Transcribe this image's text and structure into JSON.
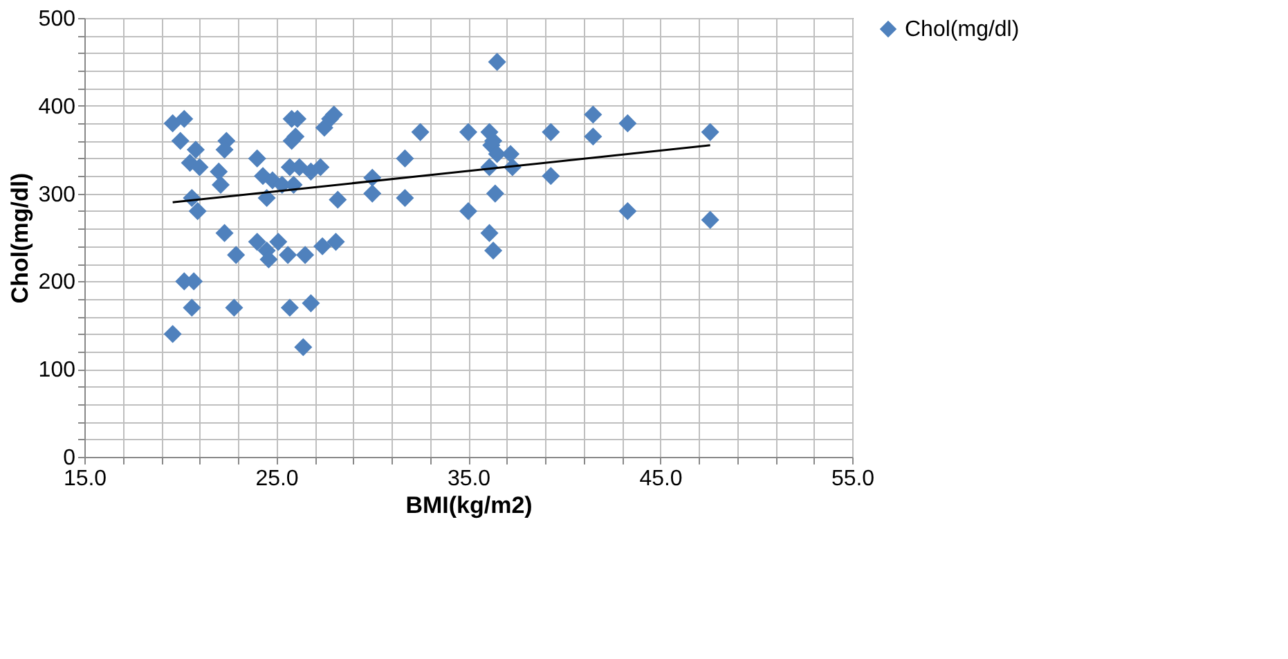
{
  "chart_data": {
    "type": "scatter",
    "xlabel": "BMI(kg/m2)",
    "ylabel": "Chol(mg/dl)",
    "xlim": [
      15,
      55
    ],
    "ylim": [
      0,
      500
    ],
    "xticks": [
      {
        "value": 15,
        "label": "15.0"
      },
      {
        "value": 17,
        "label": null
      },
      {
        "value": 19,
        "label": null
      },
      {
        "value": 21,
        "label": null
      },
      {
        "value": 23,
        "label": null
      },
      {
        "value": 25,
        "label": "25.0"
      },
      {
        "value": 27,
        "label": null
      },
      {
        "value": 29,
        "label": null
      },
      {
        "value": 31,
        "label": null
      },
      {
        "value": 33,
        "label": null
      },
      {
        "value": 35,
        "label": "35.0"
      },
      {
        "value": 37,
        "label": null
      },
      {
        "value": 39,
        "label": null
      },
      {
        "value": 41,
        "label": null
      },
      {
        "value": 43,
        "label": null
      },
      {
        "value": 45,
        "label": "45.0"
      },
      {
        "value": 47,
        "label": null
      },
      {
        "value": 49,
        "label": null
      },
      {
        "value": 51,
        "label": null
      },
      {
        "value": 53,
        "label": null
      },
      {
        "value": 55,
        "label": "55.0"
      }
    ],
    "yticks": [
      0,
      {
        "value": 20,
        "label": null
      },
      {
        "value": 40,
        "label": null
      },
      {
        "value": 60,
        "label": null
      },
      {
        "value": 80,
        "label": null
      },
      100,
      {
        "value": 120,
        "label": null
      },
      {
        "value": 140,
        "label": null
      },
      {
        "value": 160,
        "label": null
      },
      {
        "value": 180,
        "label": null
      },
      200,
      {
        "value": 220,
        "label": null
      },
      {
        "value": 240,
        "label": null
      },
      {
        "value": 260,
        "label": null
      },
      {
        "value": 280,
        "label": null
      },
      300,
      {
        "value": 320,
        "label": null
      },
      {
        "value": 340,
        "label": null
      },
      {
        "value": 360,
        "label": null
      },
      {
        "value": 380,
        "label": null
      },
      400,
      {
        "value": 420,
        "label": null
      },
      {
        "value": 440,
        "label": null
      },
      {
        "value": 460,
        "label": null
      },
      {
        "value": 480,
        "label": null
      },
      500
    ],
    "grid": true,
    "legend": "right",
    "series": [
      {
        "name": "Chol(mg/dl)",
        "marker": "diamond",
        "color": "#4f81bd",
        "x": [
          19.6,
          20.2,
          20.0,
          20.8,
          20.5,
          21.0,
          20.6,
          20.9,
          22.0,
          22.1,
          22.4,
          22.3,
          20.2,
          20.7,
          20.6,
          19.6,
          22.3,
          22.9,
          22.8,
          24.0,
          24.3,
          24.8,
          25.3,
          24.5,
          24.0,
          24.5,
          24.6,
          25.1,
          25.6,
          25.8,
          26.1,
          25.8,
          26.0,
          25.7,
          26.2,
          25.9,
          26.8,
          27.3,
          27.5,
          27.8,
          28.0,
          28.2,
          26.5,
          27.4,
          28.1,
          25.7,
          26.8,
          26.4,
          30.0,
          30.0,
          31.7,
          31.7,
          32.5,
          35.0,
          35.0,
          36.1,
          36.2,
          36.3,
          36.5,
          36.1,
          37.2,
          37.3,
          36.1,
          36.3,
          36.4,
          36.5,
          39.3,
          39.3,
          41.5,
          41.5,
          43.3,
          43.3,
          47.6,
          47.6
        ],
        "values": [
          380,
          385,
          360,
          350,
          335,
          330,
          295,
          280,
          325,
          310,
          360,
          350,
          200,
          200,
          170,
          140,
          255,
          230,
          170,
          340,
          320,
          315,
          310,
          295,
          245,
          235,
          225,
          245,
          230,
          385,
          385,
          360,
          365,
          330,
          330,
          310,
          325,
          330,
          375,
          385,
          390,
          293,
          230,
          240,
          245,
          170,
          175,
          125,
          318,
          300,
          340,
          295,
          370,
          370,
          280,
          370,
          355,
          360,
          345,
          330,
          345,
          330,
          255,
          235,
          300,
          450,
          370,
          320,
          390,
          365,
          380,
          280,
          370,
          270
        ]
      },
      {
        "type": "line",
        "marker": "none",
        "color": "#000000",
        "x": [
          19.6,
          47.6
        ],
        "values": [
          290,
          355
        ]
      }
    ]
  }
}
